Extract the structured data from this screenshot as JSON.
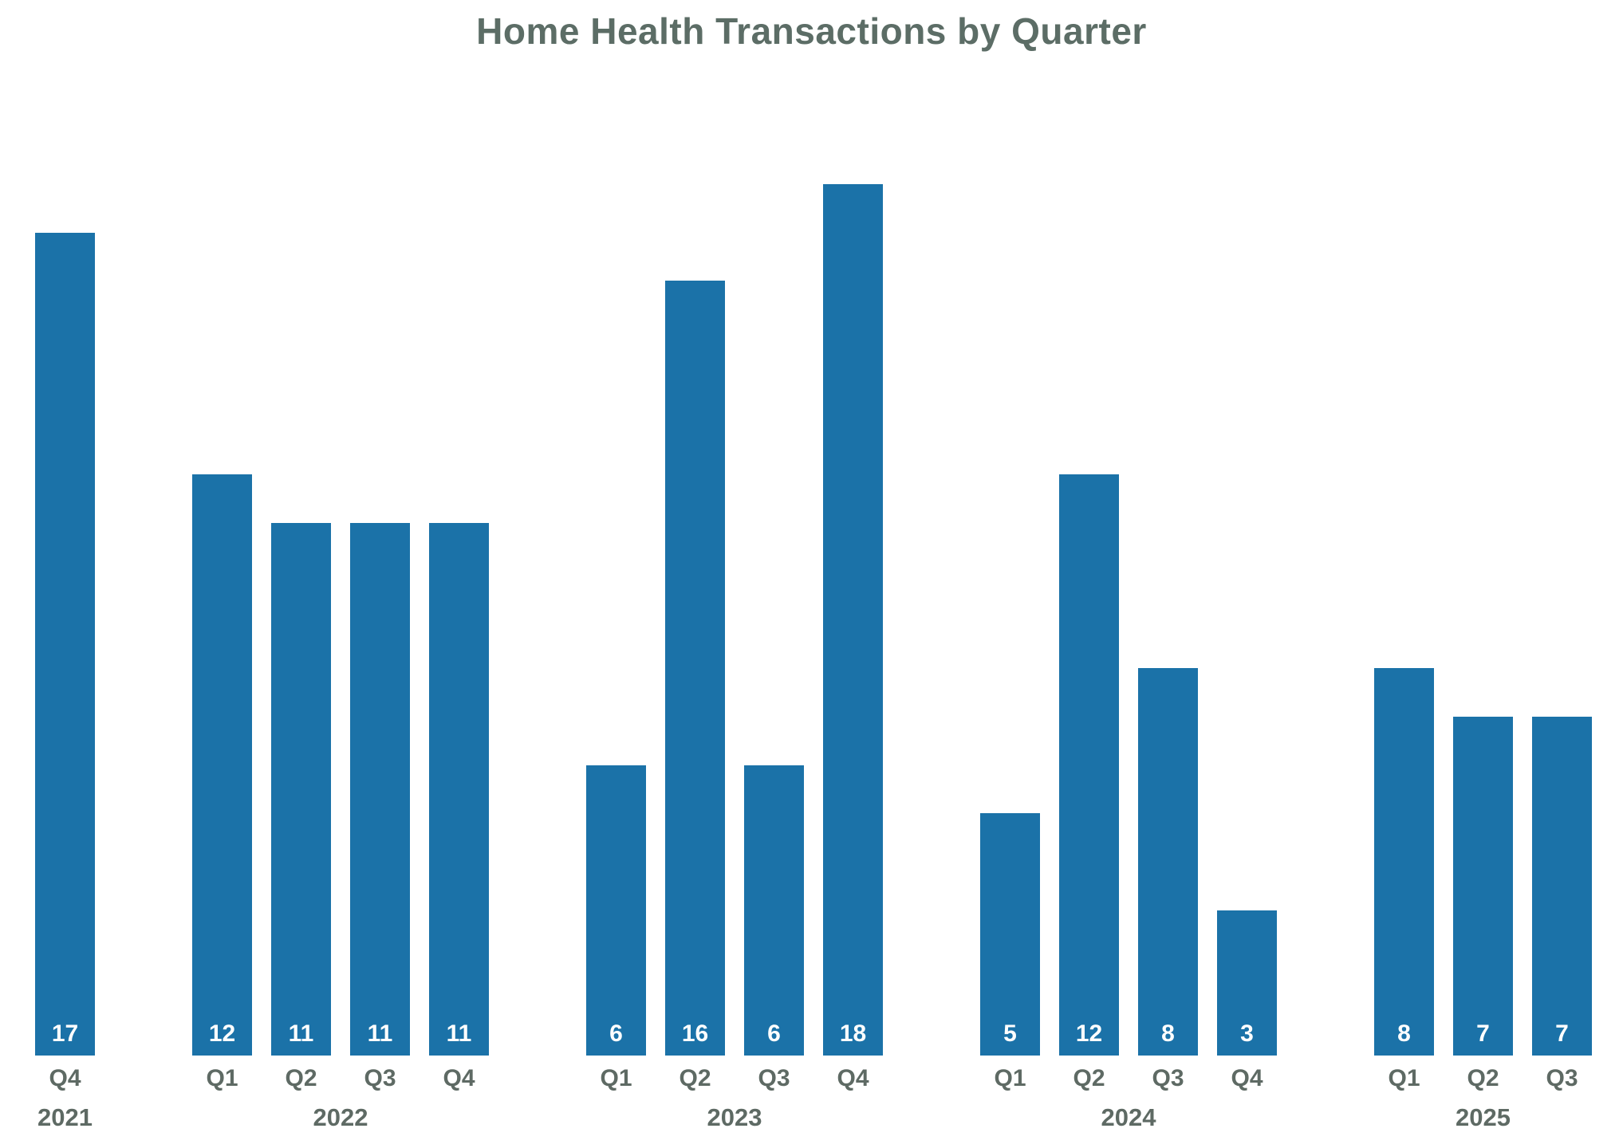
{
  "title": "Home Health Transactions by Quarter",
  "colors": {
    "bar": "#1b72a8",
    "title_text": "#5c6d66",
    "tick_text": "#5e6a64",
    "value_text": "#ffffff",
    "background": "#ffffff"
  },
  "chart_data": {
    "type": "bar",
    "title": "Home Health Transactions by Quarter",
    "xlabel": "",
    "ylabel": "",
    "ylim": [
      0,
      18
    ],
    "grid": false,
    "legend": null,
    "axes_visible": false,
    "value_labels_position": "inside-bottom",
    "groups": [
      {
        "year": "2021",
        "quarters": [
          "Q4"
        ],
        "values": [
          17
        ]
      },
      {
        "year": "2022",
        "quarters": [
          "Q1",
          "Q2",
          "Q3",
          "Q4"
        ],
        "values": [
          12,
          11,
          11,
          11
        ]
      },
      {
        "year": "2023",
        "quarters": [
          "Q1",
          "Q2",
          "Q3",
          "Q4"
        ],
        "values": [
          6,
          16,
          6,
          18
        ]
      },
      {
        "year": "2024",
        "quarters": [
          "Q1",
          "Q2",
          "Q3",
          "Q4"
        ],
        "values": [
          5,
          12,
          8,
          3
        ]
      },
      {
        "year": "2025",
        "quarters": [
          "Q1",
          "Q2",
          "Q3"
        ],
        "values": [
          8,
          7,
          7
        ]
      }
    ]
  }
}
